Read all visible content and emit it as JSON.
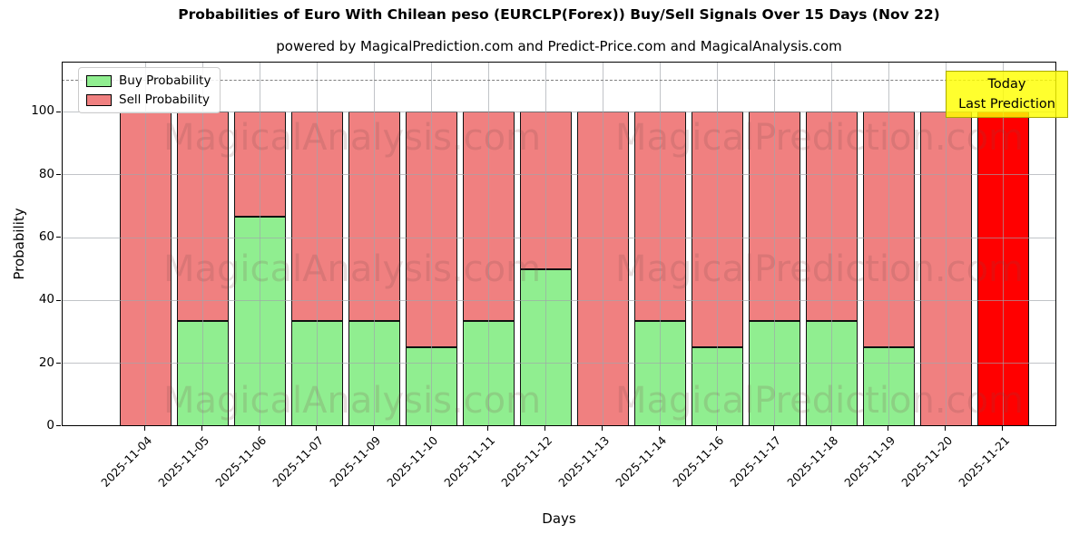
{
  "title": "Probabilities of Euro With Chilean peso (EURCLP(Forex)) Buy/Sell Signals Over 15 Days (Nov 22)",
  "subtitle": "powered by MagicalPrediction.com and Predict-Price.com and MagicalAnalysis.com",
  "legend": {
    "items": [
      {
        "label": "Buy Probability",
        "color": "#90ee90"
      },
      {
        "label": "Sell Probability",
        "color": "#f08080"
      }
    ]
  },
  "annotation": {
    "line1": "Today",
    "line2": "Last Prediction",
    "bg_color": "#ffff00",
    "border_color": "#a9a900"
  },
  "watermarks": [
    "MagicalAnalysis.com",
    "MagicalPrediction.com"
  ],
  "axes": {
    "xlabel": "Days",
    "ylabel": "Probability",
    "yticks": [
      0,
      20,
      40,
      60,
      80,
      100
    ]
  },
  "chart_data": {
    "type": "bar",
    "stacked": true,
    "title": "Probabilities of Euro With Chilean peso (EURCLP(Forex)) Buy/Sell Signals Over 15 Days (Nov 22)",
    "xlabel": "Days",
    "ylabel": "Probability",
    "ylim": [
      0,
      116
    ],
    "yticks": [
      0,
      20,
      40,
      60,
      80,
      100
    ],
    "grid": true,
    "grid_over_bars": true,
    "dashed_guideline_y": 110,
    "legend_position": "upper left",
    "categories": [
      "2025-11-04",
      "2025-11-05",
      "2025-11-06",
      "2025-11-07",
      "2025-11-09",
      "2025-11-10",
      "2025-11-11",
      "2025-11-12",
      "2025-11-13",
      "2025-11-14",
      "2025-11-16",
      "2025-11-17",
      "2025-11-18",
      "2025-11-19",
      "2025-11-20",
      "2025-11-21"
    ],
    "series": [
      {
        "name": "Buy Probability",
        "color": "#90ee90",
        "values": [
          0,
          33.33,
          66.67,
          33.33,
          33.33,
          25,
          33.33,
          50,
          0,
          33.33,
          25,
          33.33,
          33.33,
          25,
          0,
          0
        ]
      },
      {
        "name": "Sell Probability",
        "color": "#f08080",
        "values": [
          100,
          66.67,
          33.33,
          66.67,
          66.67,
          75,
          66.67,
          50,
          100,
          66.67,
          75,
          66.67,
          66.67,
          75,
          100,
          100
        ]
      }
    ],
    "highlight_bar": {
      "category": "2025-11-21",
      "index": 15,
      "color": "#ff0000",
      "meaning": "Today / Last Prediction"
    }
  }
}
